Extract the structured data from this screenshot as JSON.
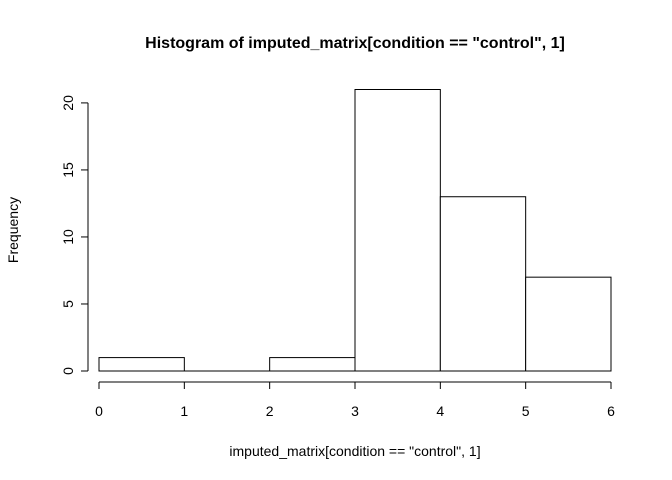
{
  "chart_data": {
    "type": "bar",
    "title": "Histogram of imputed_matrix[condition == \"control\", 1]",
    "xlabel": "imputed_matrix[condition == \"control\", 1]",
    "ylabel": "Frequency",
    "bins": [
      {
        "x0": 0,
        "x1": 1,
        "count": 1
      },
      {
        "x0": 1,
        "x1": 2,
        "count": 0
      },
      {
        "x0": 2,
        "x1": 3,
        "count": 1
      },
      {
        "x0": 3,
        "x1": 4,
        "count": 21
      },
      {
        "x0": 4,
        "x1": 5,
        "count": 13
      },
      {
        "x0": 5,
        "x1": 6,
        "count": 7
      }
    ],
    "x_ticks": [
      "0",
      "1",
      "2",
      "3",
      "4",
      "5",
      "6"
    ],
    "y_ticks": [
      "0",
      "5",
      "10",
      "15",
      "20"
    ],
    "xlim": [
      0,
      6
    ],
    "ylim": [
      0,
      21
    ],
    "grid": false,
    "colors": {
      "bar_fill": "#ffffff",
      "bar_stroke": "#000000"
    }
  }
}
